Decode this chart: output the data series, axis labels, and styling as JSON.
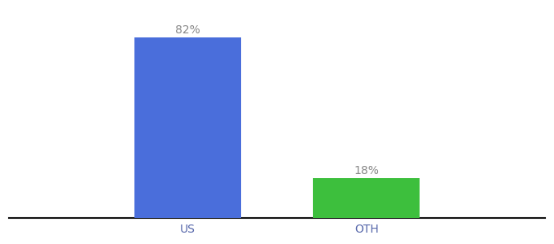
{
  "categories": [
    "US",
    "OTH"
  ],
  "values": [
    82,
    18
  ],
  "bar_colors": [
    "#4a6edb",
    "#3dbf3d"
  ],
  "labels": [
    "82%",
    "18%"
  ],
  "background_color": "#ffffff",
  "bar_width": 0.18,
  "ylim": [
    0,
    95
  ],
  "xlabel_fontsize": 10,
  "label_fontsize": 10,
  "label_color": "#888888",
  "axis_line_color": "#111111",
  "tick_color": "#5566aa",
  "x_positions": [
    0.35,
    0.65
  ]
}
